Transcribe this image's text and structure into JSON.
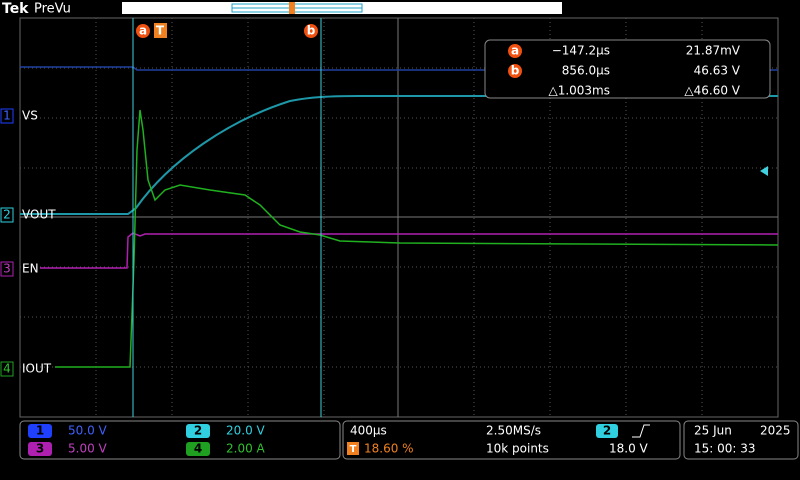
{
  "top_bar": {
    "brand": "Tek",
    "mode": "PreVu"
  },
  "markers": {
    "a": "a",
    "trigger": "T",
    "b": "b"
  },
  "readout": {
    "rows": [
      {
        "marker": "a",
        "time": "−147.2µs",
        "value": "21.87mV"
      },
      {
        "marker": "b",
        "time": "856.0µs",
        "value": "46.63 V"
      },
      {
        "marker": "",
        "time": "△1.003ms",
        "value": "△46.60 V"
      }
    ]
  },
  "channels": [
    {
      "number": "1",
      "label": "VS",
      "scale": "50.0 V"
    },
    {
      "number": "2",
      "label": "VOUT",
      "scale": "20.0 V"
    },
    {
      "number": "3",
      "label": "EN",
      "scale": "5.00 V"
    },
    {
      "number": "4",
      "label": "IOUT",
      "scale": "2.00 A"
    }
  ],
  "horizontal": {
    "time_per_div": "400µs",
    "sample_rate": "2.50MS/s",
    "trigger_icon": "T",
    "trigger_position": "18.60 %",
    "record_length": "10k points"
  },
  "trigger": {
    "source": "2",
    "level": "18.0 V"
  },
  "clock": {
    "date_day": "25 Jun",
    "year": "2025",
    "time": "15: 00: 33"
  }
}
